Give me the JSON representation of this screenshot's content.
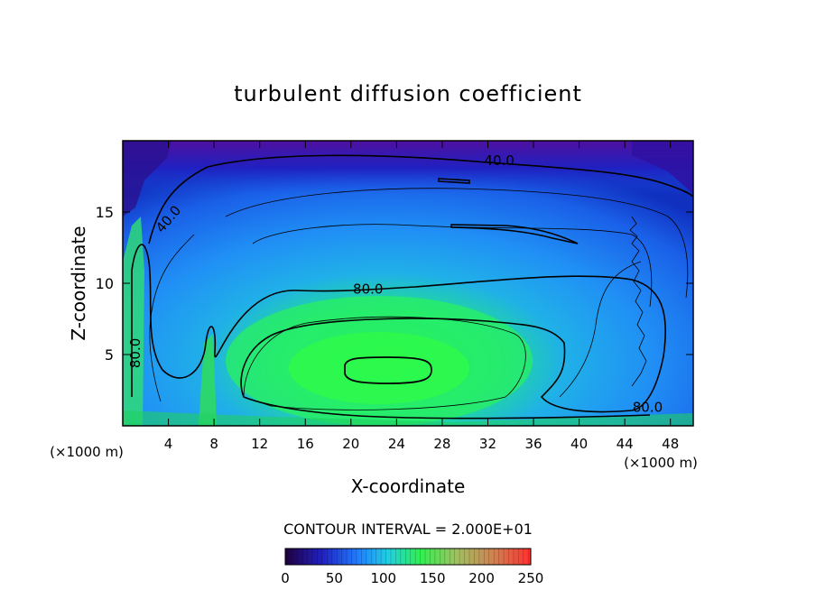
{
  "chart_data": {
    "type": "heatmap",
    "title": "turbulent diffusion coefficient",
    "xlabel": "X-coordinate",
    "ylabel": "Z-coordinate",
    "x_units": "(×1000 m)",
    "xlim": [
      0,
      50
    ],
    "ylim": [
      0,
      20
    ],
    "x_ticks": [
      4,
      8,
      12,
      16,
      20,
      24,
      28,
      32,
      36,
      40,
      44,
      48
    ],
    "y_ticks": [
      5,
      10,
      15
    ],
    "contour_interval": "CONTOUR INTERVAL = 2.000E+01",
    "contour_labels": [
      {
        "text": "40.0",
        "x": 33.0,
        "z": 18.6
      },
      {
        "text": "40.0",
        "x": 4.0,
        "z": 14.5
      },
      {
        "text": "80.0",
        "x": 21.5,
        "z": 9.6
      },
      {
        "text": "80.0",
        "x": 1.1,
        "z": 5.1
      },
      {
        "text": "80.0",
        "x": 46.0,
        "z": 1.3
      }
    ],
    "colorbar": {
      "min": 0,
      "max": 250,
      "ticks": [
        0,
        50,
        100,
        150,
        200,
        250
      ],
      "colors": [
        "#2a0050",
        "#2a2acc",
        "#3aa0ff",
        "#20e0a0",
        "#30ff30",
        "#c0c060",
        "#e06040",
        "#ff2020"
      ]
    }
  }
}
